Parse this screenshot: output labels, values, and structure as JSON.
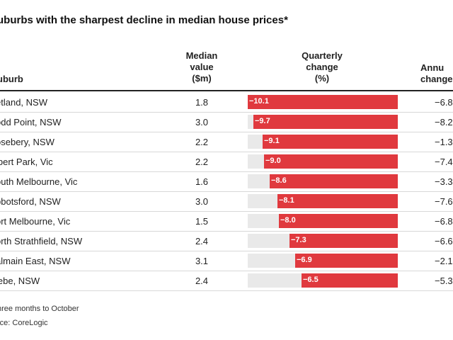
{
  "title": "uburbs with the sharpest decline in median house prices*",
  "headers": {
    "suburb": "uburb",
    "median": [
      "Median",
      "value",
      "($m)"
    ],
    "quarterly": [
      "Quarterly",
      "change",
      "(%)"
    ],
    "annual": [
      "Annu",
      "change"
    ]
  },
  "rows": [
    {
      "suburb": "etland, NSW",
      "median": "1.8",
      "quarterly": "−10.1",
      "annual": "−6.8"
    },
    {
      "suburb": "odd Point, NSW",
      "median": "3.0",
      "quarterly": "−9.7",
      "annual": "−8.2"
    },
    {
      "suburb": "osebery, NSW",
      "median": "2.2",
      "quarterly": "−9.1",
      "annual": "−1.3"
    },
    {
      "suburb": "lbert Park, Vic",
      "median": "2.2",
      "quarterly": "−9.0",
      "annual": "−7.4"
    },
    {
      "suburb": "outh Melbourne, Vic",
      "median": "1.6",
      "quarterly": "−8.6",
      "annual": "−3.3"
    },
    {
      "suburb": "bbotsford, NSW",
      "median": "3.0",
      "quarterly": "−8.1",
      "annual": "−7.6"
    },
    {
      "suburb": "ort Melbourne, Vic",
      "median": "1.5",
      "quarterly": "−8.0",
      "annual": "−6.8"
    },
    {
      "suburb": "orth Strathfield, NSW",
      "median": "2.4",
      "quarterly": "−7.3",
      "annual": "−6.6"
    },
    {
      "suburb": "almain East, NSW",
      "median": "3.1",
      "quarterly": "−6.9",
      "annual": "−2.1"
    },
    {
      "suburb": "lebe, NSW",
      "median": "2.4",
      "quarterly": "−6.5",
      "annual": "−5.3"
    }
  ],
  "footnote": "hree months to October",
  "source": "rce: CoreLogic",
  "chart_data": {
    "type": "bar",
    "categories": [
      "etland, NSW",
      "odd Point, NSW",
      "osebery, NSW",
      "lbert Park, Vic",
      "outh Melbourne, Vic",
      "bbotsford, NSW",
      "ort Melbourne, Vic",
      "orth Strathfield, NSW",
      "almain East, NSW",
      "lebe, NSW"
    ],
    "values": [
      -10.1,
      -9.7,
      -9.1,
      -9.0,
      -8.6,
      -8.1,
      -8.0,
      -7.3,
      -6.9,
      -6.5
    ],
    "xlim": [
      -10.1,
      0
    ],
    "bar_color": "#e0393e",
    "track_color": "#e9e9e9"
  }
}
